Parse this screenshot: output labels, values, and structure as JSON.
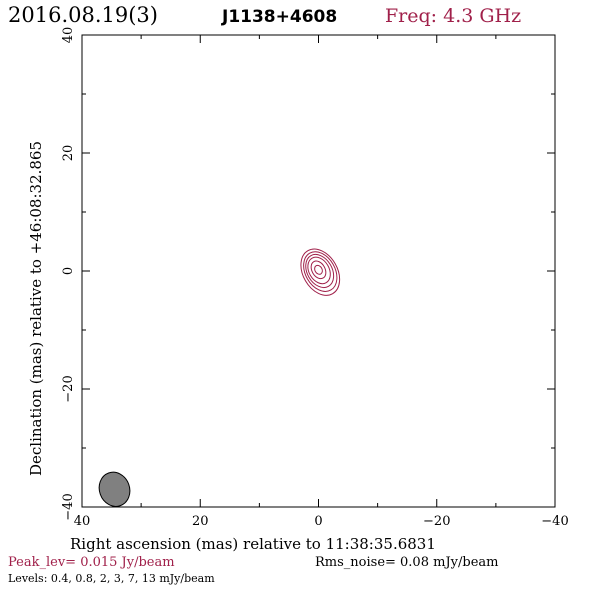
{
  "header": {
    "date": "2016.08.19(3)",
    "source": "J1138+4608",
    "frequency": "Freq: 4.3 GHz"
  },
  "colors": {
    "accent": "#a0204a",
    "contour": "#a0204a",
    "beam_fill": "#808080",
    "axes": "#000000"
  },
  "chart_data": {
    "type": "contour",
    "xlabel": "Right ascension (mas) relative to 11:38:35.6831",
    "ylabel": "Declination (mas) relative to +46:08:32.865",
    "xlim": [
      40,
      -40
    ],
    "ylim": [
      -40,
      40
    ],
    "xticks": [
      40,
      20,
      0,
      -20,
      -40
    ],
    "yticks": [
      -40,
      -20,
      0,
      20,
      40
    ],
    "xtick_labels": [
      "40",
      "20",
      "0",
      "−20",
      "−40"
    ],
    "ytick_labels": [
      "−40",
      "−20",
      "0",
      "20",
      "40"
    ],
    "contours": [
      {
        "level": 0.4,
        "cx": -0.3,
        "cy": -0.2,
        "a": 4.2,
        "b": 2.9
      },
      {
        "level": 0.8,
        "cx": -0.3,
        "cy": -0.1,
        "a": 3.6,
        "b": 2.5
      },
      {
        "level": 2,
        "cx": -0.2,
        "cy": 0.0,
        "a": 3.0,
        "b": 2.1
      },
      {
        "level": 3,
        "cx": -0.1,
        "cy": 0.1,
        "a": 2.4,
        "b": 1.7
      },
      {
        "level": 7,
        "cx": 0.0,
        "cy": 0.2,
        "a": 1.6,
        "b": 1.1
      },
      {
        "level": 13,
        "cx": 0.0,
        "cy": 0.2,
        "a": 0.8,
        "b": 0.6
      }
    ],
    "contour_angle_deg": 30,
    "beam": {
      "cx": 34.5,
      "cy": -37.0,
      "a": 2.1,
      "b": 1.5,
      "angle_deg": 20
    }
  },
  "footer": {
    "peak": "Peak_lev=  0.015 Jy/beam",
    "rms": "Rms_noise= 0.08 mJy/beam",
    "levels": "Levels: 0.4, 0.8,    2,    3,    7,   13 mJy/beam"
  }
}
